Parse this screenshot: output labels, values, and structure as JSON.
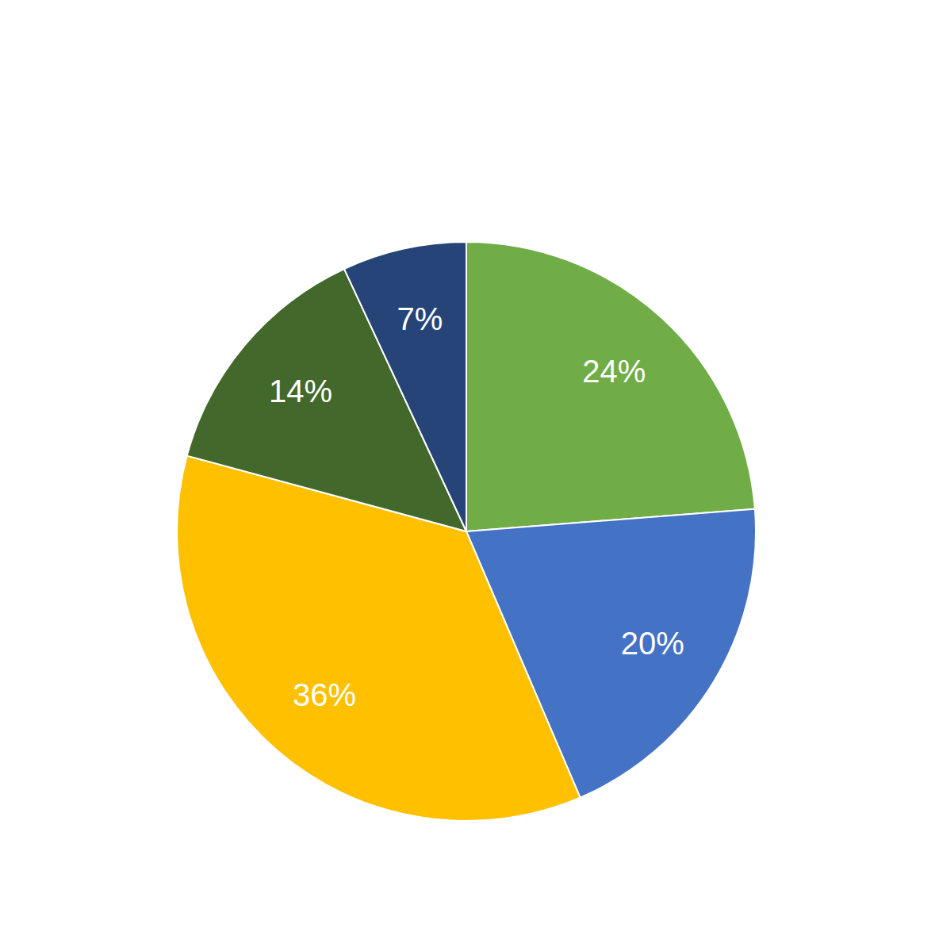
{
  "chart_data": {
    "type": "pie",
    "values": [
      24,
      20,
      36,
      14,
      7
    ],
    "value_labels": [
      "24%",
      "20%",
      "36%",
      "14%",
      "7%"
    ],
    "colors": [
      "#70ad47",
      "#4472c4",
      "#ffc000",
      "#43682b",
      "#264478"
    ],
    "data_labels": true
  }
}
